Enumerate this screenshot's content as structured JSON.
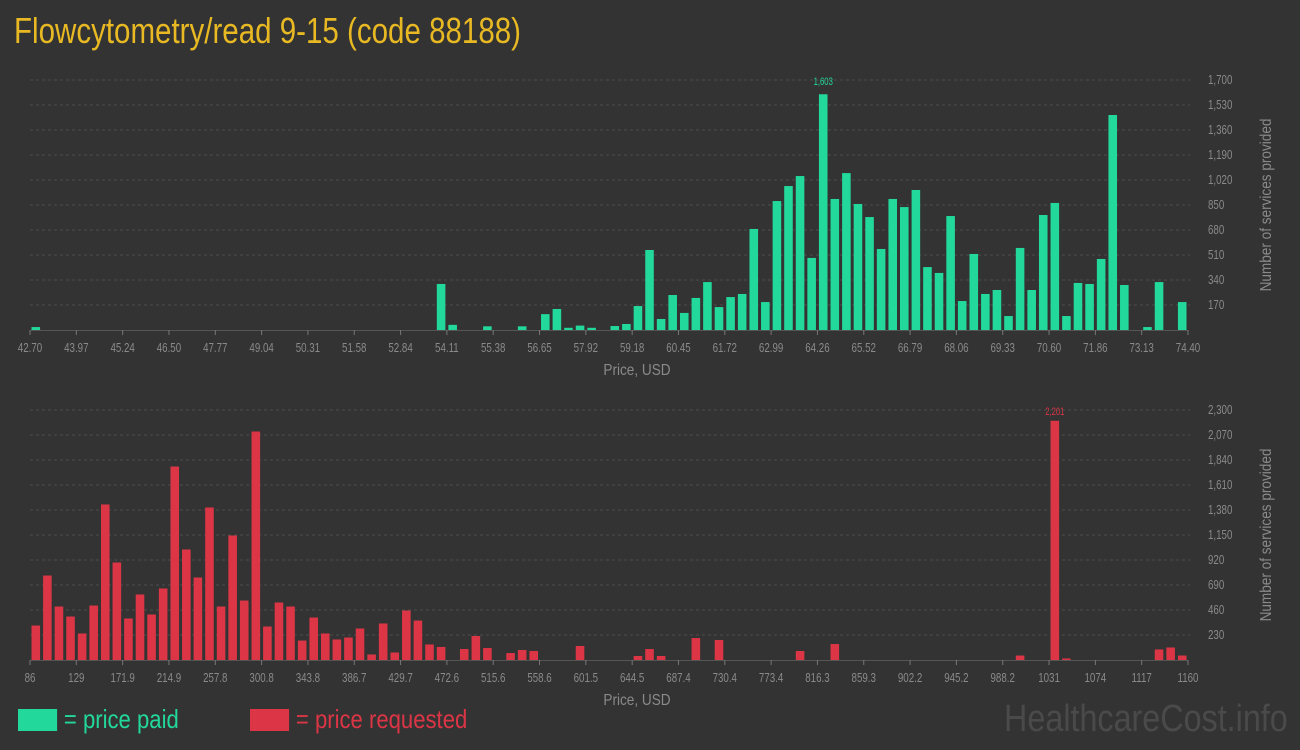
{
  "title": "Flowcytometry/read 9-15 (code 88188)",
  "colors": {
    "paid": "#22d89a",
    "requested": "#dc3545",
    "title": "#e8b923",
    "background": "#333333"
  },
  "legend": {
    "paid": "= price paid",
    "requested": "= price requested"
  },
  "watermark": "HealthcareCost.info",
  "chart_data": [
    {
      "type": "bar",
      "series_name": "price paid",
      "xlabel": "Price, USD",
      "ylabel": "Number of services provided",
      "ylim": [
        0,
        1700
      ],
      "yticks": [
        "170",
        "340",
        "510",
        "680",
        "850",
        "1,020",
        "1,190",
        "1,360",
        "1,530",
        "1,700"
      ],
      "xticks": [
        "42.70",
        "43.97",
        "45.24",
        "46.50",
        "47.77",
        "49.04",
        "50.31",
        "51.58",
        "52.84",
        "54.11",
        "55.38",
        "56.65",
        "57.92",
        "59.18",
        "60.45",
        "61.72",
        "62.99",
        "64.26",
        "65.52",
        "66.79",
        "68.06",
        "69.33",
        "70.60",
        "71.86",
        "73.13",
        "74.40"
      ],
      "xlim": [
        42.7,
        74.4
      ],
      "grid": true,
      "max_label": "1,603",
      "values": [
        20,
        0,
        0,
        0,
        0,
        0,
        0,
        0,
        0,
        0,
        0,
        0,
        0,
        0,
        0,
        0,
        0,
        0,
        0,
        0,
        0,
        0,
        0,
        0,
        0,
        0,
        0,
        0,
        0,
        0,
        0,
        0,
        0,
        0,
        0,
        313,
        35,
        0,
        0,
        25,
        0,
        0,
        25,
        0,
        108,
        143,
        15,
        30,
        15,
        0,
        27,
        41,
        163,
        544,
        75,
        238,
        116,
        218,
        326,
        156,
        224,
        245,
        687,
        190,
        877,
        979,
        1047,
        490,
        1603,
        891,
        1067,
        857,
        768,
        551,
        891,
        836,
        952,
        428,
        388,
        775,
        197,
        517,
        245,
        272,
        95,
        558,
        272,
        782,
        864,
        95,
        320,
        313,
        483,
        1462,
        306,
        0,
        20,
        326,
        0,
        190
      ]
    },
    {
      "type": "bar",
      "series_name": "price requested",
      "xlabel": "Price, USD",
      "ylabel": "Number of services provided",
      "ylim": [
        0,
        2300
      ],
      "yticks": [
        "230",
        "460",
        "690",
        "920",
        "1,150",
        "1,380",
        "1,610",
        "1,840",
        "2,070",
        "2,300"
      ],
      "xticks": [
        "86",
        "129",
        "171.9",
        "214.9",
        "257.8",
        "300.8",
        "343.8",
        "386.7",
        "429.7",
        "472.6",
        "515.6",
        "558.6",
        "601.5",
        "644.5",
        "687.4",
        "730.4",
        "773.4",
        "816.3",
        "859.3",
        "902.2",
        "945.2",
        "988.2",
        "1031",
        "1074",
        "1117",
        "1160"
      ],
      "xlim": [
        86,
        1160
      ],
      "grid": true,
      "max_label": "2,201",
      "values": [
        317,
        777,
        492,
        400,
        244,
        501,
        1431,
        897,
        382,
        603,
        419,
        658,
        1780,
        1017,
        759,
        1403,
        492,
        1145,
        547,
        2102,
        308,
        529,
        492,
        179,
        391,
        244,
        189,
        207,
        290,
        51,
        336,
        69,
        455,
        363,
        143,
        120,
        0,
        101,
        221,
        110,
        0,
        64,
        92,
        83,
        0,
        0,
        0,
        129,
        0,
        0,
        0,
        0,
        37,
        101,
        37,
        0,
        0,
        202,
        0,
        184,
        0,
        0,
        0,
        0,
        0,
        0,
        83,
        0,
        0,
        147,
        0,
        0,
        0,
        0,
        0,
        0,
        0,
        0,
        0,
        0,
        0,
        0,
        0,
        0,
        0,
        41,
        0,
        0,
        2201,
        14,
        0,
        0,
        0,
        0,
        0,
        0,
        0,
        97,
        115,
        41
      ]
    }
  ]
}
